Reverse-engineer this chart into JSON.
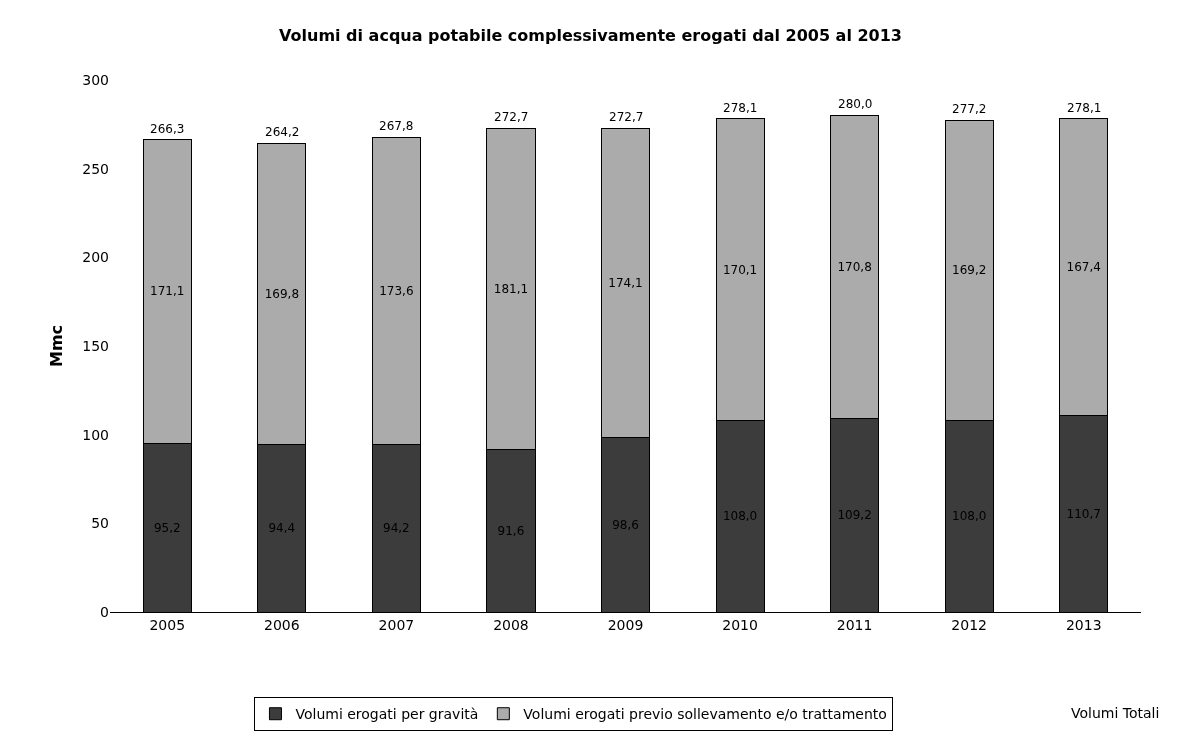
{
  "chart_data": {
    "type": "bar",
    "stacked": true,
    "title": "Volumi di acqua potabile complessivamente erogati dal 2005 al 2013",
    "ylabel": "Mmc",
    "categories": [
      "2005",
      "2006",
      "2007",
      "2008",
      "2009",
      "2010",
      "2011",
      "2012",
      "2013"
    ],
    "series": [
      {
        "name": "Volumi erogati per gravità",
        "color": "#3c3c3c",
        "values": [
          95.2,
          94.4,
          94.2,
          91.6,
          98.6,
          108.0,
          109.2,
          108.0,
          110.7
        ],
        "value_labels": [
          "95,2",
          "94,4",
          "94,2",
          "91,6",
          "98,6",
          "108,0",
          "109,2",
          "108,0",
          "110,7"
        ]
      },
      {
        "name": "Volumi erogati previo sollevamento e/o trattamento",
        "color": "#ababab",
        "values": [
          171.1,
          169.8,
          173.6,
          181.1,
          174.1,
          170.1,
          170.8,
          169.2,
          167.4
        ],
        "value_labels": [
          "171,1",
          "169,8",
          "173,6",
          "181,1",
          "174,1",
          "170,1",
          "170,8",
          "169,2",
          "167,4"
        ]
      }
    ],
    "totals": [
      "266,3",
      "264,2",
      "267,8",
      "272,7",
      "272,7",
      "278,1",
      "280,0",
      "277,2",
      "278,1"
    ],
    "annotations": [
      "Volumi Totali"
    ],
    "ylim": [
      0,
      300
    ],
    "yticks": [
      0,
      50,
      100,
      150,
      200,
      250,
      300
    ],
    "legend": "bottom"
  }
}
